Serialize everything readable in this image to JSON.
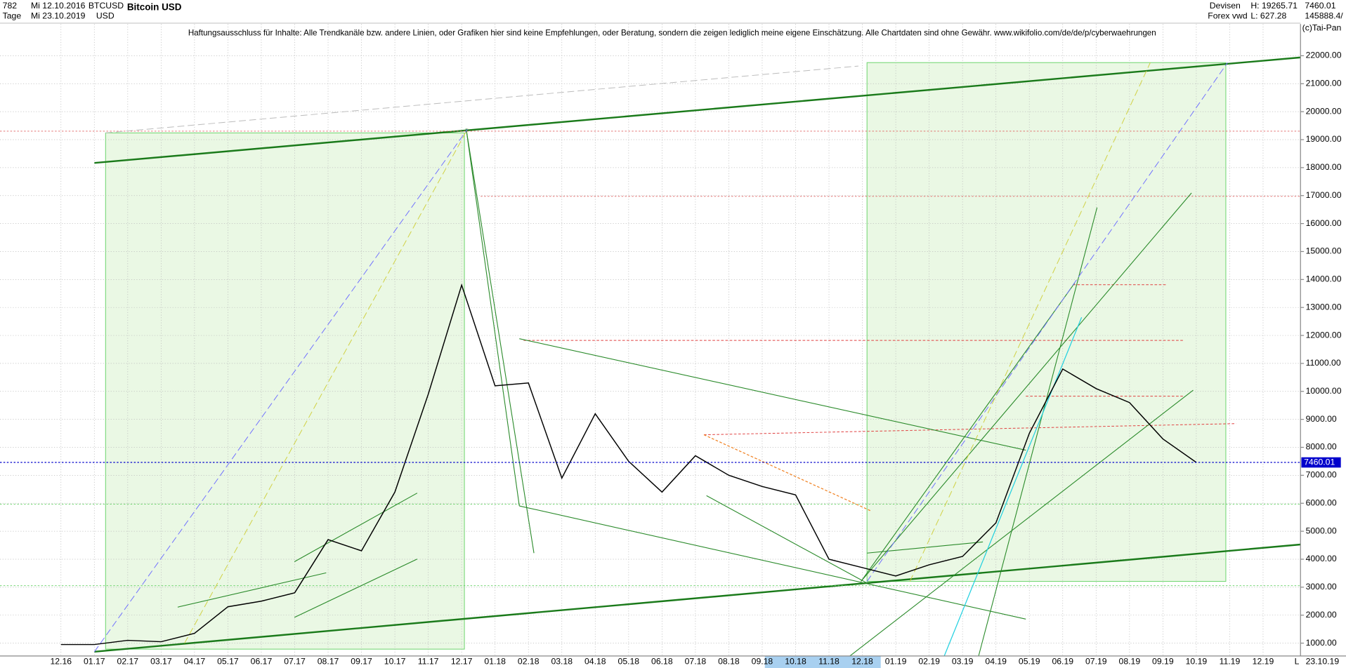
{
  "header": {
    "count": "782",
    "start_date": "Mi 12.10.2016",
    "symbol": "BTCUSD",
    "period": "Tage",
    "end_date": "Mi 23.10.2019",
    "currency": "USD",
    "market": "Devisen",
    "source": "Forex vwd",
    "high": "H: 19265.71",
    "low": "L: 627.28",
    "volume": "145888.4/",
    "copyright": "(c)Tai-Pan",
    "footer_date": "23.10.19",
    "footer_scale": "L"
  },
  "chart_data": {
    "type": "line",
    "title": "Bitcoin USD",
    "annotation": "Haftungsausschluss für Inhalte: Alle Trendkanäle bzw. andere Linien, oder Grafiken hier sind keine Empfehlungen, oder Beratung, sondern die zeigen lediglich meine eigene Einschätzung. Alle Chartdaten sind ohne Gewähr.  www.wikifolio.com/de/de/p/cyberwaehrungen",
    "categories": [
      "12.16",
      "01.17",
      "02.17",
      "03.17",
      "04.17",
      "05.17",
      "06.17",
      "07.17",
      "08.17",
      "09.17",
      "10.17",
      "11.17",
      "12.17",
      "01.18",
      "02.18",
      "03.18",
      "04.18",
      "05.18",
      "06.18",
      "07.18",
      "08.18",
      "09.18",
      "10.18",
      "11.18",
      "12.18",
      "01.19",
      "02.19",
      "03.19",
      "04.19",
      "05.19",
      "06.19",
      "07.19",
      "08.19",
      "09.19",
      "10.19",
      "11.19",
      "12.19"
    ],
    "series": [
      {
        "name": "BTCUSD",
        "color": "#000000",
        "values": [
          950,
          950,
          1100,
          1050,
          1350,
          2300,
          2500,
          2800,
          4700,
          4300,
          6400,
          9900,
          13800,
          10200,
          10300,
          6900,
          9200,
          7500,
          6400,
          7700,
          7000,
          6600,
          6300,
          4000,
          3700,
          3400,
          3800,
          4100,
          5300,
          8500,
          10800,
          10100,
          9600,
          8300,
          7460.01,
          null,
          null
        ]
      }
    ],
    "last_price": 7460.01,
    "ylim": [
      540,
      23134
    ],
    "yticks": [
      {
        "value": 1000,
        "label": "1000.00"
      },
      {
        "value": 2000,
        "label": "2000.00"
      },
      {
        "value": 3000,
        "label": "3000.00"
      },
      {
        "value": 4000,
        "label": "4000.00"
      },
      {
        "value": 5000,
        "label": "5000.00"
      },
      {
        "value": 6000,
        "label": "6000.00"
      },
      {
        "value": 7000,
        "label": "7000.00"
      },
      {
        "value": 8000,
        "label": "8000.00"
      },
      {
        "value": 9000,
        "label": "9000.00"
      },
      {
        "value": 10000,
        "label": "10000.00"
      },
      {
        "value": 11000,
        "label": "11000.00"
      },
      {
        "value": 12000,
        "label": "12000.00"
      },
      {
        "value": 13000,
        "label": "13000.00"
      },
      {
        "value": 14000,
        "label": "14000.00"
      },
      {
        "value": 15000,
        "label": "15000.00"
      },
      {
        "value": 16000,
        "label": "16000.00"
      },
      {
        "value": 17000,
        "label": "17000.00"
      },
      {
        "value": 18000,
        "label": "18000.00"
      },
      {
        "value": 19000,
        "label": "19000.00"
      },
      {
        "value": 20000,
        "label": "20000.00"
      },
      {
        "value": 21000,
        "label": "21000.00"
      },
      {
        "value": 22000,
        "label": "22000.00"
      }
    ],
    "grid": true,
    "price_line_color": "#0000cc"
  }
}
